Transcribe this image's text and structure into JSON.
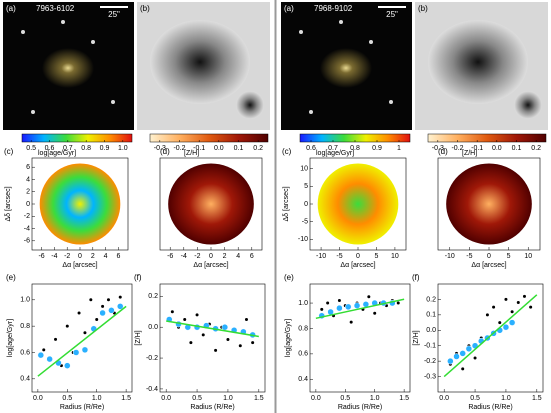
{
  "galaxies": [
    {
      "id": "7963-6102",
      "scale_label": "25\"",
      "image_labels": [
        "(a)",
        "(b)"
      ],
      "colorbars": [
        {
          "colors": [
            "#1a1aff",
            "#00b4ff",
            "#3cdc3c",
            "#f0f000",
            "#ff8c00",
            "#e01010"
          ],
          "lim": [
            0.45,
            1.05
          ],
          "ticks": [
            0.5,
            0.6,
            0.7,
            0.8,
            0.9,
            {
              "value": 1.0,
              "label": "1.0"
            }
          ]
        },
        {
          "colors": [
            "#fff2d0",
            "#ffb060",
            "#e05a10",
            "#a01808",
            "#500000"
          ],
          "lim": [
            -0.35,
            0.25
          ],
          "ticks": [
            -0.3,
            -0.2,
            -0.1,
            {
              "value": 0,
              "label": "0.0"
            },
            0.1,
            0.2
          ]
        }
      ],
      "maps": [
        {
          "label": "(c)",
          "quantity": "log[age/Gyr]",
          "x_label": "Δα [arcsec]",
          "y_label": "Δδ [arcsec]",
          "xlim": [
            -7.5,
            7.5
          ],
          "ylim": [
            -7.5,
            7.5
          ],
          "xticks": [
            -6,
            -4,
            -2,
            0,
            2,
            4,
            6
          ],
          "yticks": [
            -6,
            -4,
            -2,
            0,
            2,
            4,
            6
          ]
        },
        {
          "label": "(d)",
          "quantity": "[Z/H]",
          "x_label": "Δα [arcsec]",
          "xlim": [
            -7.5,
            7.5
          ],
          "xticks": [
            -6,
            -4,
            -2,
            0,
            2,
            4,
            6
          ]
        }
      ]
    },
    {
      "id": "7968-9102",
      "scale_label": "25\"",
      "image_labels": [
        "(a)",
        "(b)"
      ],
      "colorbars": [
        {
          "colors": [
            "#1a1aff",
            "#00b4ff",
            "#3cdc3c",
            "#f0f000",
            "#ff8c00",
            "#e01010"
          ],
          "lim": [
            0.55,
            1.05
          ],
          "ticks": [
            0.6,
            0.7,
            0.8,
            0.9,
            1
          ]
        },
        {
          "colors": [
            "#fff2d0",
            "#ffb060",
            "#e05a10",
            "#a01808",
            "#500000"
          ],
          "lim": [
            -0.35,
            0.25
          ],
          "ticks": [
            -0.3,
            -0.2,
            -0.1,
            {
              "value": 0,
              "label": "0.0"
            },
            0.1,
            0.2
          ]
        }
      ],
      "maps": [
        {
          "label": "(c)",
          "quantity": "log[age/Gyr]",
          "x_label": "Δα [arcsec]",
          "y_label": "Δδ [arcsec]",
          "xlim": [
            -13,
            13
          ],
          "ylim": [
            -13,
            13
          ],
          "xticks": [
            -10,
            -5,
            0,
            5,
            10
          ],
          "yticks": [
            -10,
            -5,
            0,
            5,
            10
          ]
        },
        {
          "label": "(d)",
          "quantity": "[Z/H]",
          "x_label": "Δα [arcsec]",
          "xlim": [
            -13,
            13
          ],
          "xticks": [
            -10,
            -5,
            0,
            5,
            10
          ]
        }
      ]
    }
  ],
  "chart_data": [
    {
      "type": "scatter",
      "title": "(e)",
      "x_label": "Radius (R/Re)",
      "y_label": "log[age/Gyr]",
      "xlim": [
        -0.1,
        1.6
      ],
      "ylim": [
        0.3,
        1.12
      ],
      "xticks": [
        {
          "value": 0,
          "label": "0.0"
        },
        0.5,
        {
          "value": 1,
          "label": "1.0"
        },
        1.5
      ],
      "yticks": [
        0.4,
        0.6,
        0.8,
        {
          "value": 1,
          "label": "1.0"
        }
      ],
      "series": [
        {
          "color": "#000000",
          "mode": "markers",
          "x": [
            0.1,
            0.2,
            0.3,
            0.4,
            0.5,
            0.6,
            0.7,
            0.8,
            0.9,
            1.0,
            1.1,
            1.2,
            1.3,
            1.4
          ],
          "values": [
            0.62,
            0.55,
            0.7,
            0.5,
            0.8,
            0.6,
            0.9,
            0.75,
            1.0,
            0.85,
            0.95,
            1.0,
            0.9,
            1.02
          ]
        },
        {
          "color": "#2ab0ff",
          "mode": "markers",
          "x": [
            0.05,
            0.2,
            0.35,
            0.5,
            0.65,
            0.8,
            0.95,
            1.1,
            1.25,
            1.4
          ],
          "values": [
            0.58,
            0.55,
            0.52,
            0.5,
            0.6,
            0.62,
            0.78,
            0.9,
            0.92,
            0.95
          ]
        },
        {
          "color": "#33dd33",
          "mode": "line",
          "x": [
            0,
            1.5
          ],
          "values": [
            0.42,
            0.95
          ]
        }
      ]
    },
    {
      "type": "scatter",
      "title": "(f)",
      "x_label": "Radius (R/Re)",
      "y_label": "[Z/H]",
      "xlim": [
        -0.1,
        1.6
      ],
      "ylim": [
        -0.42,
        0.28
      ],
      "xticks": [
        {
          "value": 0,
          "label": "0.0"
        },
        0.5,
        {
          "value": 1,
          "label": "1.0"
        },
        1.5
      ],
      "yticks": [
        -0.4,
        -0.2,
        {
          "value": 0,
          "label": "0.0"
        },
        0.2
      ],
      "series": [
        {
          "color": "#000000",
          "mode": "markers",
          "x": [
            0.1,
            0.2,
            0.3,
            0.4,
            0.5,
            0.6,
            0.7,
            0.8,
            0.9,
            1.0,
            1.1,
            1.2,
            1.3,
            1.4
          ],
          "values": [
            0.1,
            0.0,
            0.05,
            -0.1,
            0.08,
            -0.05,
            0.02,
            -0.15,
            0.0,
            -0.08,
            -0.02,
            -0.12,
            0.05,
            -0.1
          ]
        },
        {
          "color": "#2ab0ff",
          "mode": "markers",
          "x": [
            0.05,
            0.2,
            0.35,
            0.5,
            0.65,
            0.8,
            0.95,
            1.1,
            1.25,
            1.4
          ],
          "values": [
            0.05,
            0.02,
            0.0,
            0.0,
            0.01,
            -0.01,
            0.0,
            -0.02,
            -0.03,
            -0.05
          ]
        },
        {
          "color": "#33dd33",
          "mode": "line",
          "x": [
            0,
            1.5
          ],
          "values": [
            0.04,
            -0.06
          ]
        }
      ]
    },
    {
      "type": "scatter",
      "title": "(e)",
      "x_label": "Radius (R/Re)",
      "y_label": "log[age/Gyr]",
      "xlim": [
        -0.1,
        1.6
      ],
      "ylim": [
        0.3,
        1.15
      ],
      "xticks": [
        {
          "value": 0,
          "label": "0.0"
        },
        0.5,
        {
          "value": 1,
          "label": "1.0"
        },
        1.5
      ],
      "yticks": [
        0.4,
        0.6,
        0.8,
        {
          "value": 1,
          "label": "1.0"
        }
      ],
      "series": [
        {
          "color": "#000000",
          "mode": "markers",
          "x": [
            0.1,
            0.2,
            0.3,
            0.4,
            0.5,
            0.6,
            0.7,
            0.8,
            0.9,
            1.0,
            1.1,
            1.2,
            1.3,
            1.4
          ],
          "values": [
            0.95,
            1.0,
            0.9,
            1.02,
            0.98,
            0.85,
            1.0,
            0.95,
            1.05,
            0.92,
            1.0,
            0.98,
            1.02,
            1.0
          ]
        },
        {
          "color": "#2ab0ff",
          "mode": "markers",
          "x": [
            0.1,
            0.25,
            0.4,
            0.55,
            0.7,
            0.85,
            1.0,
            1.15,
            1.3
          ],
          "values": [
            0.9,
            0.93,
            0.96,
            0.97,
            0.98,
            0.99,
            1.0,
            1.0,
            1.0
          ]
        },
        {
          "color": "#33dd33",
          "mode": "line",
          "x": [
            0,
            1.5
          ],
          "values": [
            0.88,
            1.03
          ]
        }
      ]
    },
    {
      "type": "scatter",
      "title": "(f)",
      "x_label": "Radius (R/Re)",
      "y_label": "[Z/H]",
      "xlim": [
        -0.1,
        1.6
      ],
      "ylim": [
        -0.4,
        0.3
      ],
      "xticks": [
        {
          "value": 0,
          "label": "0.0"
        },
        0.5,
        {
          "value": 1,
          "label": "1.0"
        },
        1.5
      ],
      "yticks": [
        -0.3,
        -0.2,
        -0.1,
        {
          "value": 0,
          "label": "0.0"
        },
        0.1,
        0.2
      ],
      "series": [
        {
          "color": "#000000",
          "mode": "markers",
          "x": [
            0.1,
            0.2,
            0.3,
            0.4,
            0.5,
            0.6,
            0.7,
            0.8,
            0.9,
            1.0,
            1.1,
            1.2,
            1.3,
            1.4
          ],
          "values": [
            -0.22,
            -0.15,
            -0.25,
            -0.1,
            -0.18,
            -0.05,
            0.1,
            0.15,
            0.05,
            0.2,
            0.12,
            0.18,
            0.22,
            0.15
          ]
        },
        {
          "color": "#2ab0ff",
          "mode": "markers",
          "x": [
            0.1,
            0.2,
            0.3,
            0.4,
            0.5,
            0.6,
            0.7,
            0.8,
            0.9,
            1.0,
            1.1
          ],
          "values": [
            -0.2,
            -0.17,
            -0.15,
            -0.12,
            -0.1,
            -0.07,
            -0.05,
            -0.02,
            0.0,
            0.02,
            0.05
          ]
        },
        {
          "color": "#33dd33",
          "mode": "line",
          "x": [
            0,
            1.5
          ],
          "values": [
            -0.3,
            0.23
          ]
        }
      ]
    }
  ]
}
